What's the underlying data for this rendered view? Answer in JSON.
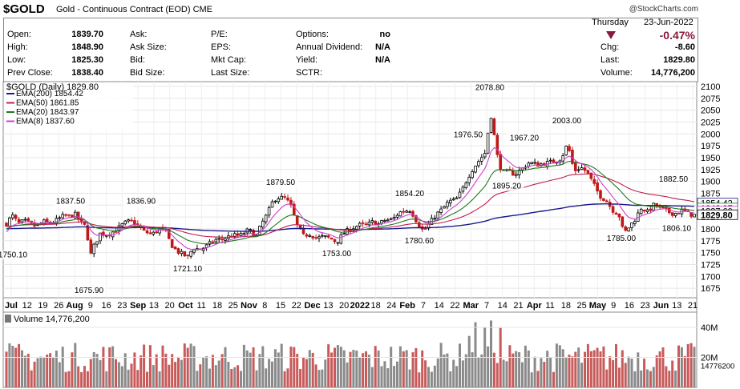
{
  "header": {
    "symbol": "$GOLD",
    "description": "Gold - Continuous Contract (EOD)",
    "exchange": "CME",
    "watermark": "@StockCharts.com",
    "day": "Thursday",
    "date": "23-Jun-2022"
  },
  "quote": {
    "open_label": "Open:",
    "open": "1839.70",
    "high_label": "High:",
    "high": "1848.90",
    "low_label": "Low:",
    "low": "1825.30",
    "prev_label": "Prev Close:",
    "prev": "1838.40",
    "ask_label": "Ask:",
    "ask_size_label": "Ask Size:",
    "bid_label": "Bid:",
    "bid_size_label": "Bid Size:",
    "pe_label": "P/E:",
    "eps_label": "EPS:",
    "mktcap_label": "Mkt Cap:",
    "lastsize_label": "Last Size:",
    "options_label": "Options:",
    "options": "no",
    "div_label": "Annual Dividend:",
    "div": "N/A",
    "yield_label": "Yield:",
    "yield": "N/A",
    "sctr_label": "SCTR:",
    "pct": "-0.47%",
    "chg_label": "Chg:",
    "chg": "-8.60",
    "last_label": "Last:",
    "last": "1829.80",
    "volume_label": "Volume:",
    "volume": "14,776,200"
  },
  "colors": {
    "ema200": "#1a1a8c",
    "ema50": "#c02050",
    "ema20": "#1e7a1e",
    "ema8": "#d040d0",
    "up": "#000000",
    "down": "#c01818",
    "vol_up": "#8a8a8a",
    "vol_down": "#c85a5a"
  },
  "chart_data": {
    "type": "line",
    "title": "$GOLD (Daily) 1829.80",
    "legend": [
      {
        "name": "EMA(200)",
        "value": "1854.42"
      },
      {
        "name": "EMA(50)",
        "value": "1861.85"
      },
      {
        "name": "EMA(20)",
        "value": "1843.97"
      },
      {
        "name": "EMA(8)",
        "value": "1837.60"
      }
    ],
    "ylim": [
      1655,
      2110
    ],
    "yticks": [
      2100,
      2075,
      2050,
      2025,
      2000,
      1975,
      1950,
      1925,
      1900,
      1875,
      1850,
      1825,
      1800,
      1775,
      1750,
      1725,
      1700,
      1675
    ],
    "xticks": [
      "Jul",
      "12",
      "19",
      "26",
      "Aug",
      "9",
      "16",
      "23",
      "Sep",
      "13",
      "20",
      "Oct",
      "11",
      "18",
      "25",
      "Nov",
      "8",
      "15",
      "22",
      "Dec",
      "13",
      "20",
      "2022",
      "18",
      "24",
      "Feb",
      "7",
      "14",
      "22",
      "Mar",
      "7",
      "14",
      "21",
      "Apr",
      "11",
      "18",
      "25",
      "May",
      "9",
      "16",
      "23",
      "Jun",
      "13",
      "21"
    ],
    "price_points": [
      [
        0,
        1780
      ],
      [
        7,
        1808
      ],
      [
        15,
        1829
      ],
      [
        23,
        1811
      ],
      [
        30,
        1817
      ],
      [
        45,
        1805
      ],
      [
        55,
        1815
      ],
      [
        65,
        1812
      ],
      [
        72,
        1820
      ],
      [
        80,
        1828
      ],
      [
        88,
        1826
      ],
      [
        93,
        1832
      ],
      [
        100,
        1815
      ],
      [
        108,
        1803
      ],
      [
        112,
        1740
      ],
      [
        116,
        1760
      ],
      [
        125,
        1790
      ],
      [
        135,
        1788
      ],
      [
        145,
        1798
      ],
      [
        155,
        1812
      ],
      [
        163,
        1817
      ],
      [
        170,
        1810
      ],
      [
        180,
        1794
      ],
      [
        190,
        1789
      ],
      [
        200,
        1800
      ],
      [
        207,
        1793
      ],
      [
        213,
        1768
      ],
      [
        220,
        1754
      ],
      [
        228,
        1746
      ],
      [
        235,
        1740
      ],
      [
        240,
        1760
      ],
      [
        250,
        1757
      ],
      [
        258,
        1764
      ],
      [
        268,
        1777
      ],
      [
        278,
        1778
      ],
      [
        288,
        1786
      ],
      [
        300,
        1786
      ],
      [
        310,
        1798
      ],
      [
        320,
        1785
      ],
      [
        326,
        1810
      ],
      [
        333,
        1830
      ],
      [
        340,
        1857
      ],
      [
        345,
        1866
      ],
      [
        355,
        1865
      ],
      [
        362,
        1852
      ],
      [
        370,
        1810
      ],
      [
        378,
        1785
      ],
      [
        386,
        1790
      ],
      [
        395,
        1780
      ],
      [
        403,
        1784
      ],
      [
        412,
        1780
      ],
      [
        420,
        1772
      ],
      [
        428,
        1790
      ],
      [
        437,
        1800
      ],
      [
        448,
        1808
      ],
      [
        458,
        1808
      ],
      [
        465,
        1815
      ],
      [
        472,
        1810
      ],
      [
        480,
        1818
      ],
      [
        490,
        1820
      ],
      [
        498,
        1835
      ],
      [
        505,
        1838
      ],
      [
        512,
        1840
      ],
      [
        520,
        1815
      ],
      [
        528,
        1795
      ],
      [
        536,
        1812
      ],
      [
        544,
        1830
      ],
      [
        552,
        1842
      ],
      [
        560,
        1858
      ],
      [
        568,
        1860
      ],
      [
        576,
        1880
      ],
      [
        584,
        1910
      ],
      [
        591,
        1930
      ],
      [
        598,
        1945
      ],
      [
        605,
        1960
      ],
      [
        612,
        2043
      ],
      [
        617,
        1990
      ],
      [
        622,
        1935
      ],
      [
        628,
        1920
      ],
      [
        635,
        1920
      ],
      [
        642,
        1915
      ],
      [
        650,
        1925
      ],
      [
        660,
        1940
      ],
      [
        670,
        1935
      ],
      [
        680,
        1938
      ],
      [
        690,
        1942
      ],
      [
        700,
        1948
      ],
      [
        708,
        1980
      ],
      [
        713,
        1940
      ],
      [
        718,
        1923
      ],
      [
        724,
        1930
      ],
      [
        732,
        1920
      ],
      [
        740,
        1895
      ],
      [
        748,
        1870
      ],
      [
        756,
        1860
      ],
      [
        764,
        1840
      ],
      [
        772,
        1830
      ],
      [
        778,
        1790
      ],
      [
        785,
        1805
      ],
      [
        792,
        1820
      ],
      [
        800,
        1845
      ],
      [
        808,
        1835
      ],
      [
        815,
        1850
      ],
      [
        822,
        1845
      ],
      [
        830,
        1838
      ],
      [
        838,
        1833
      ],
      [
        845,
        1833
      ],
      [
        852,
        1840
      ],
      [
        858,
        1832
      ],
      [
        866,
        1829
      ]
    ],
    "annotations": [
      {
        "label": "1837.50",
        "x": 88,
        "price": 1853
      },
      {
        "label": "1836.90",
        "x": 176,
        "price": 1853
      },
      {
        "label": "1879.50",
        "x": 350,
        "price": 1893
      },
      {
        "label": "1854.20",
        "x": 511,
        "price": 1869
      },
      {
        "label": "2078.80",
        "x": 611,
        "price": 2092
      },
      {
        "label": "1976.50",
        "x": 584,
        "price": 1993
      },
      {
        "label": "1967.20",
        "x": 654,
        "price": 1986
      },
      {
        "label": "2003.00",
        "x": 707,
        "price": 2022
      },
      {
        "label": "1882.50",
        "x": 840,
        "price": 1899
      },
      {
        "label": "1750.10",
        "x": 16,
        "price": 1740
      },
      {
        "label": "1675.90",
        "x": 111,
        "price": 1665
      },
      {
        "label": "1721.10",
        "x": 234,
        "price": 1711
      },
      {
        "label": "1753.00",
        "x": 420,
        "price": 1743
      },
      {
        "label": "1780.60",
        "x": 523,
        "price": 1770
      },
      {
        "label": "1895.20",
        "x": 632,
        "price": 1885
      },
      {
        "label": "1785.00",
        "x": 775,
        "price": 1775
      },
      {
        "label": "1806.10",
        "x": 844,
        "price": 1796
      }
    ],
    "right_labels": [
      {
        "label": "1854.42",
        "price": 1854.42
      },
      {
        "label": "1843.97",
        "price": 1843.97
      },
      {
        "label": "1837.60",
        "price": 1837.6
      },
      {
        "label": "1829.80",
        "price": 1829.8
      }
    ],
    "volume_panel": {
      "title": "Volume 14,776,200",
      "ymax": 48,
      "yticks": [
        {
          "label": "40M",
          "v": 40
        },
        {
          "label": "20M",
          "v": 20
        },
        {
          "label": "14776200",
          "v": 14.78
        }
      ]
    }
  }
}
